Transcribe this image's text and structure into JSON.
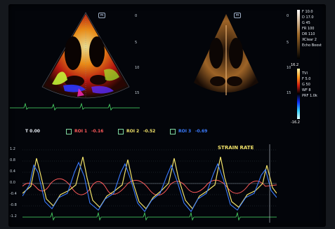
{
  "left_pane": {
    "mode_icon": "m"
  },
  "right_pane": {
    "mode_icon": "m"
  },
  "bmode_params": [
    "F 10.0",
    "D 17.0",
    "G 45",
    "FR 100",
    "DR 110",
    "XClear 2",
    "Echo Boost"
  ],
  "tvi_params": [
    "TVI",
    "F 5.0",
    "G 50",
    "WF 8",
    "PRF 1.0k"
  ],
  "color_bar": {
    "top_label": "16.2",
    "bottom_label": "-16.2"
  },
  "depth_scale_left": [
    "0",
    "5",
    "10",
    "15"
  ],
  "depth_scale_right": [
    "0",
    "5",
    "10",
    "15"
  ],
  "trace_header": {
    "time_label": "T 0.00",
    "rois": [
      {
        "label": "ROI 1",
        "value": "-0.16",
        "color": "#ff5a5a"
      },
      {
        "label": "ROI 2",
        "value": "-0.52",
        "color": "#f2e36a"
      },
      {
        "label": "ROI 3",
        "value": "-0.69",
        "color": "#3b7cff"
      }
    ]
  },
  "strain_label": "STRAIN RATE",
  "y_ticks": [
    "1.2",
    "0.8",
    "0.4",
    "0.0",
    "-0.4",
    "-0.8",
    "-1.2"
  ],
  "colors": {
    "roi1": "#ff5a5a",
    "roi2": "#f2e36a",
    "roi3": "#3b7cff",
    "ecg": "#4ee06a"
  }
}
